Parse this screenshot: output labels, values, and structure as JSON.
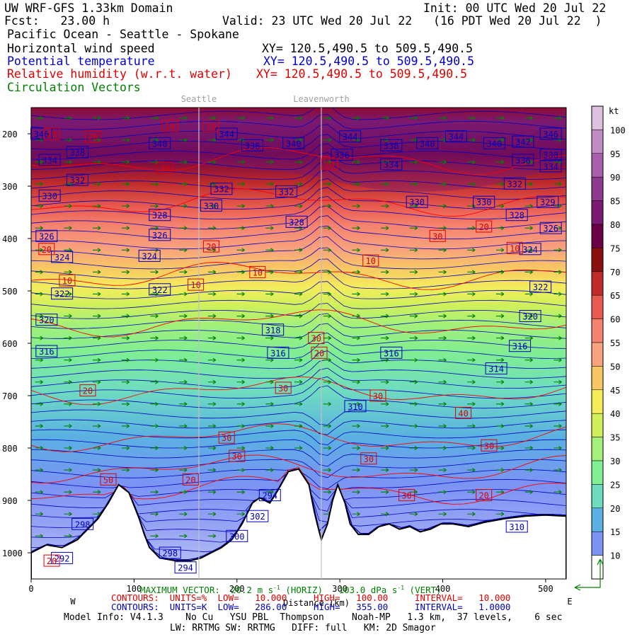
{
  "header": {
    "model": "UW WRF-GFS 1.33km Domain",
    "init": "Init: 00 UTC Wed 20 Jul 22",
    "fcst": "Fcst:   23.00 h",
    "valid": "Valid: 23 UTC Wed 20 Jul 22   (16 PDT Wed 20 Jul 22  )",
    "region": "Pacific Ocean - Seattle - Spokane",
    "field1": "Horizontal wind speed",
    "xy1": "XY= 120.5,490.5 to 509.5,490.5",
    "field2": "Potential temperature",
    "xy2": "XY= 120.5,490.5 to 509.5,490.5",
    "field3": "Relative humidity (w.r.t. water)",
    "xy3": "XY= 120.5,490.5 to 509.5,490.5",
    "field4": "Circulation Vectors"
  },
  "colors": {
    "kt_scale": [
      "#ffffff",
      "#7c93f4",
      "#5ab0e2",
      "#6fdcc0",
      "#80ee93",
      "#a4f07a",
      "#d0f05a",
      "#f5ec5c",
      "#f8c764",
      "#f8a27e",
      "#f5826f",
      "#e85a50",
      "#bf2b2b",
      "#8a1010",
      "#6b0046",
      "#7a1a72",
      "#8c3a90",
      "#a860ac",
      "#c08cc4",
      "#dcc0de",
      "#f2e6f4"
    ],
    "theta_contour": "#0000c0",
    "rh_contour": "#ff0000",
    "vector": "#008000"
  },
  "chart_data": {
    "type": "heatmap",
    "title": "Horizontal wind speed",
    "xlabel": "Distance (km)",
    "ylabel": "",
    "xlim": [
      0,
      520
    ],
    "ylim": [
      1050,
      150
    ],
    "x_ticks": [
      0,
      100,
      200,
      300,
      400,
      500
    ],
    "y_ticks": [
      200,
      300,
      400,
      500,
      600,
      700,
      800,
      900,
      1000
    ],
    "y_tick_labels": [
      "200",
      "300",
      "400",
      "500",
      "600",
      "700",
      "800",
      "900",
      "1000"
    ],
    "locations": [
      {
        "name": "Seattle",
        "x": 163
      },
      {
        "name": "Leavenworth",
        "x": 282
      }
    ],
    "direction_left": "W",
    "direction_right": "E",
    "colorbar": {
      "unit": "kt",
      "levels": [
        100,
        95,
        90,
        85,
        80,
        75,
        70,
        65,
        60,
        55,
        50,
        45,
        40,
        35,
        30,
        25,
        20,
        15,
        10
      ]
    },
    "theta_labels": [
      {
        "v": 346,
        "x": 10,
        "p": 200
      },
      {
        "v": 338,
        "x": 45,
        "p": 235
      },
      {
        "v": 334,
        "x": 18,
        "p": 250
      },
      {
        "v": 332,
        "x": 45,
        "p": 288
      },
      {
        "v": 330,
        "x": 18,
        "p": 318
      },
      {
        "v": 328,
        "x": 125,
        "p": 355
      },
      {
        "v": 326,
        "x": 15,
        "p": 395
      },
      {
        "v": 326,
        "x": 125,
        "p": 393
      },
      {
        "v": 324,
        "x": 30,
        "p": 435
      },
      {
        "v": 324,
        "x": 115,
        "p": 433
      },
      {
        "v": 322,
        "x": 30,
        "p": 505
      },
      {
        "v": 322,
        "x": 125,
        "p": 497
      },
      {
        "v": 320,
        "x": 15,
        "p": 555
      },
      {
        "v": 316,
        "x": 15,
        "p": 615
      },
      {
        "v": 340,
        "x": 125,
        "p": 218
      },
      {
        "v": 344,
        "x": 190,
        "p": 200
      },
      {
        "v": 338,
        "x": 215,
        "p": 222
      },
      {
        "v": 332,
        "x": 185,
        "p": 305
      },
      {
        "v": 330,
        "x": 175,
        "p": 337
      },
      {
        "v": 332,
        "x": 248,
        "p": 310
      },
      {
        "v": 340,
        "x": 255,
        "p": 218
      },
      {
        "v": 328,
        "x": 258,
        "p": 368
      },
      {
        "v": 318,
        "x": 235,
        "p": 574
      },
      {
        "v": 316,
        "x": 240,
        "p": 618
      },
      {
        "v": 344,
        "x": 310,
        "p": 205
      },
      {
        "v": 336,
        "x": 302,
        "p": 240
      },
      {
        "v": 338,
        "x": 350,
        "p": 222
      },
      {
        "v": 334,
        "x": 350,
        "p": 258
      },
      {
        "v": 340,
        "x": 385,
        "p": 218
      },
      {
        "v": 344,
        "x": 413,
        "p": 205
      },
      {
        "v": 340,
        "x": 450,
        "p": 218
      },
      {
        "v": 342,
        "x": 478,
        "p": 215
      },
      {
        "v": 336,
        "x": 478,
        "p": 250
      },
      {
        "v": 346,
        "x": 505,
        "p": 200
      },
      {
        "v": 338,
        "x": 505,
        "p": 240
      },
      {
        "v": 334,
        "x": 505,
        "p": 262
      },
      {
        "v": 332,
        "x": 470,
        "p": 295
      },
      {
        "v": 330,
        "x": 375,
        "p": 330
      },
      {
        "v": 330,
        "x": 440,
        "p": 330
      },
      {
        "v": 329,
        "x": 502,
        "p": 330
      },
      {
        "v": 328,
        "x": 472,
        "p": 355
      },
      {
        "v": 326,
        "x": 505,
        "p": 380
      },
      {
        "v": 324,
        "x": 485,
        "p": 420
      },
      {
        "v": 322,
        "x": 495,
        "p": 492
      },
      {
        "v": 320,
        "x": 485,
        "p": 548
      },
      {
        "v": 316,
        "x": 350,
        "p": 618
      },
      {
        "v": 316,
        "x": 475,
        "p": 605
      },
      {
        "v": 314,
        "x": 452,
        "p": 648
      },
      {
        "v": 310,
        "x": 315,
        "p": 720
      },
      {
        "v": 310,
        "x": 472,
        "p": 950
      },
      {
        "v": 302,
        "x": 220,
        "p": 930
      },
      {
        "v": 300,
        "x": 200,
        "p": 968
      },
      {
        "v": 298,
        "x": 135,
        "p": 1000
      },
      {
        "v": 298,
        "x": 50,
        "p": 945
      },
      {
        "v": 292,
        "x": 30,
        "p": 1010
      },
      {
        "v": 294,
        "x": 150,
        "p": 1028
      },
      {
        "v": 294,
        "x": 232,
        "p": 890
      }
    ],
    "rh_labels": [
      {
        "v": 20,
        "x": 20,
        "p": 200
      },
      {
        "v": 20,
        "x": 60,
        "p": 205
      },
      {
        "v": 10,
        "x": 135,
        "p": 185
      },
      {
        "v": 10,
        "x": 175,
        "p": 185
      },
      {
        "v": 30,
        "x": 130,
        "p": 265
      },
      {
        "v": 20,
        "x": 175,
        "p": 415
      },
      {
        "v": 10,
        "x": 160,
        "p": 488
      },
      {
        "v": 10,
        "x": 220,
        "p": 464
      },
      {
        "v": 20,
        "x": 15,
        "p": 420
      },
      {
        "v": 10,
        "x": 35,
        "p": 480
      },
      {
        "v": 20,
        "x": 55,
        "p": 690
      },
      {
        "v": 30,
        "x": 190,
        "p": 780
      },
      {
        "v": 30,
        "x": 200,
        "p": 815
      },
      {
        "v": 20,
        "x": 155,
        "p": 860
      },
      {
        "v": 30,
        "x": 245,
        "p": 685
      },
      {
        "v": 30,
        "x": 277,
        "p": 590
      },
      {
        "v": 20,
        "x": 280,
        "p": 618
      },
      {
        "v": 30,
        "x": 337,
        "p": 700
      },
      {
        "v": 30,
        "x": 328,
        "p": 820
      },
      {
        "v": 30,
        "x": 445,
        "p": 795
      },
      {
        "v": 40,
        "x": 420,
        "p": 733
      },
      {
        "v": 30,
        "x": 395,
        "p": 395
      },
      {
        "v": 20,
        "x": 440,
        "p": 377
      },
      {
        "v": 10,
        "x": 470,
        "p": 418
      },
      {
        "v": 20,
        "x": 20,
        "p": 1015
      },
      {
        "v": 30,
        "x": 365,
        "p": 890
      },
      {
        "v": 20,
        "x": 440,
        "p": 890
      },
      {
        "v": 20,
        "x": 290,
        "p": 258
      },
      {
        "v": 50,
        "x": 75,
        "p": 860
      },
      {
        "v": 10,
        "x": 330,
        "p": 442
      }
    ],
    "terrain": [
      [
        0,
        1000
      ],
      [
        15,
        985
      ],
      [
        30,
        990
      ],
      [
        45,
        975
      ],
      [
        55,
        955
      ],
      [
        65,
        935
      ],
      [
        75,
        905
      ],
      [
        85,
        870
      ],
      [
        95,
        885
      ],
      [
        105,
        935
      ],
      [
        110,
        965
      ],
      [
        115,
        990
      ],
      [
        125,
        1010
      ],
      [
        140,
        1015
      ],
      [
        155,
        1015
      ],
      [
        165,
        1010
      ],
      [
        175,
        1000
      ],
      [
        185,
        990
      ],
      [
        195,
        975
      ],
      [
        205,
        945
      ],
      [
        215,
        905
      ],
      [
        222,
        895
      ],
      [
        232,
        905
      ],
      [
        240,
        880
      ],
      [
        250,
        845
      ],
      [
        260,
        840
      ],
      [
        270,
        870
      ],
      [
        275,
        920
      ],
      [
        278,
        945
      ],
      [
        282,
        975
      ],
      [
        288,
        945
      ],
      [
        293,
        900
      ],
      [
        298,
        870
      ],
      [
        305,
        905
      ],
      [
        310,
        945
      ],
      [
        318,
        965
      ],
      [
        328,
        965
      ],
      [
        338,
        950
      ],
      [
        348,
        945
      ],
      [
        358,
        955
      ],
      [
        368,
        950
      ],
      [
        378,
        960
      ],
      [
        388,
        955
      ],
      [
        398,
        945
      ],
      [
        410,
        945
      ],
      [
        425,
        950
      ],
      [
        440,
        942
      ],
      [
        460,
        935
      ],
      [
        480,
        930
      ],
      [
        500,
        928
      ],
      [
        520,
        930
      ]
    ]
  },
  "max_vector_label": "MAXIMUM VECTOR:  20.2 m s",
  "max_vector_unit": "-1",
  "max_vector_horiz": " (HORIZ)",
  "max_vector_vert": "103.0 dPa s",
  "max_vector_vert_unit": "-1",
  "max_vector_vert_tail": " (VERT)",
  "contours_rh": "CONTOURS:  UNITS=%  LOW=   10.000     HIGH=   100.00     INTERVAL=   10.000",
  "contours_theta": "CONTOURS:  UNITS=K  LOW=   286.00     HIGH=   355.00     INTERVAL=   1.0000",
  "model_info": "Model Info: V4.1.3    No Cu   YSU PBL  Thompson     Noah-MP   1.3 km,  37 levels,    6 sec",
  "physics": "LW: RRTMG SW: RRTMG   DIFF: full   KM: 2D Smagor"
}
